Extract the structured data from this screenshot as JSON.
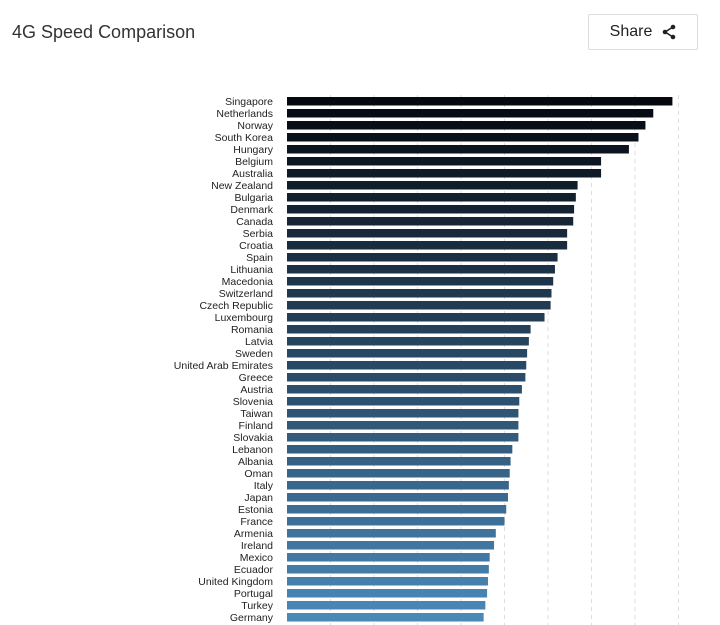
{
  "header": {
    "title": "4G Speed Comparison",
    "share_label": "Share"
  },
  "icons": {
    "share": "share-icon"
  },
  "colors": {
    "bar_dark": "#05080f",
    "bar_light": "#4a88b8",
    "grid": "#dddddd"
  },
  "chart_data": {
    "type": "bar",
    "orientation": "horizontal",
    "title": "4G Speed Comparison",
    "xlim": [
      0,
      45
    ],
    "grid": true,
    "categories": [
      "Singapore",
      "Netherlands",
      "Norway",
      "South Korea",
      "Hungary",
      "Belgium",
      "Australia",
      "New Zealand",
      "Bulgaria",
      "Denmark",
      "Canada",
      "Serbia",
      "Croatia",
      "Spain",
      "Lithuania",
      "Macedonia",
      "Switzerland",
      "Czech Republic",
      "Luxembourg",
      "Romania",
      "Latvia",
      "Sweden",
      "United Arab Emirates",
      "Greece",
      "Austria",
      "Slovenia",
      "Taiwan",
      "Finland",
      "Slovakia",
      "Lebanon",
      "Albania",
      "Oman",
      "Italy",
      "Japan",
      "Estonia",
      "France",
      "Armenia",
      "Ireland",
      "Mexico",
      "Ecuador",
      "United Kingdom",
      "Portugal",
      "Turkey",
      "Germany"
    ],
    "values": [
      44.3,
      42.1,
      41.2,
      40.4,
      39.3,
      36.1,
      36.1,
      33.4,
      33.2,
      33.0,
      32.9,
      32.2,
      32.2,
      31.1,
      30.8,
      30.6,
      30.4,
      30.3,
      29.6,
      28.0,
      27.8,
      27.6,
      27.5,
      27.4,
      27.0,
      26.7,
      26.6,
      26.6,
      26.6,
      25.9,
      25.7,
      25.6,
      25.5,
      25.4,
      25.2,
      25.0,
      24.0,
      23.8,
      23.3,
      23.2,
      23.1,
      23.0,
      22.8,
      22.6
    ]
  }
}
